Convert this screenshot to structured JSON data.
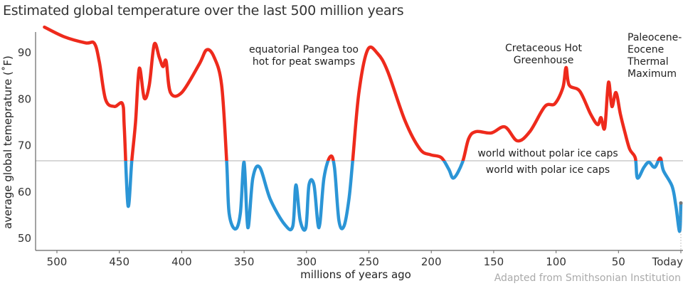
{
  "chart_data": {
    "type": "line",
    "title": "Estimated global temperature over the last 500 million years",
    "xlabel": "millions of years ago",
    "ylabel": "average global temeprature (˚F)",
    "xlim": [
      510,
      0
    ],
    "ylim": [
      48,
      96
    ],
    "x_ticks": [
      {
        "value": 500,
        "label": "500"
      },
      {
        "value": 450,
        "label": "450"
      },
      {
        "value": 400,
        "label": "400"
      },
      {
        "value": 350,
        "label": "350"
      },
      {
        "value": 300,
        "label": "300"
      },
      {
        "value": 250,
        "label": "250"
      },
      {
        "value": 200,
        "label": "200"
      },
      {
        "value": 150,
        "label": "150"
      },
      {
        "value": 100,
        "label": "100"
      },
      {
        "value": 50,
        "label": "50"
      },
      {
        "value": 0,
        "label": "Today"
      }
    ],
    "y_ticks": [
      {
        "value": 90,
        "label": "90"
      },
      {
        "value": 80,
        "label": "80"
      },
      {
        "value": 70,
        "label": "70"
      },
      {
        "value": 60,
        "label": "60"
      },
      {
        "value": 50,
        "label": "50"
      }
    ],
    "threshold": {
      "value": 66.7,
      "label_above": "world without polar ice caps",
      "label_below": "world with polar ice caps"
    },
    "colors": {
      "warm": "#ee2a1c",
      "cold": "#2b95d6",
      "threshold": "#cccccc"
    },
    "series": [
      {
        "name": "temperature",
        "x": [
          510,
          494,
          477,
          470,
          466,
          461,
          454,
          447.5,
          446,
          443,
          440,
          437,
          434,
          430,
          426,
          422,
          418,
          415,
          412.5,
          409,
          400,
          386,
          380,
          374,
          368,
          364,
          362,
          357,
          353,
          350,
          347,
          343,
          337.5,
          329,
          317.5,
          311,
          308.5,
          305,
          300.5,
          298,
          294,
          290,
          286,
          281,
          277.6,
          274,
          270,
          266,
          263,
          258,
          251,
          243,
          235,
          221,
          209,
          200.5,
          192,
          186,
          182,
          175,
          170,
          164,
          152,
          141,
          131,
          121,
          109,
          101,
          94.5,
          92,
          89.5,
          81,
          72.4,
          66.7,
          64,
          61,
          58,
          55.3,
          52,
          48.5,
          45,
          41,
          36.5,
          34.8,
          29.6,
          25.6,
          21,
          16.5,
          14,
          7,
          4,
          1,
          0
        ],
        "y": [
          95.5,
          93.4,
          92.1,
          92,
          88,
          79.9,
          78.4,
          79,
          73.8,
          57,
          66.7,
          75,
          86.6,
          80.2,
          83,
          91.8,
          89,
          87,
          88.2,
          81.4,
          81.4,
          87.5,
          90.6,
          89,
          83,
          66.7,
          55.4,
          52,
          55.4,
          66.4,
          52.3,
          63,
          65.3,
          58.4,
          53,
          52.6,
          61.5,
          53.8,
          52.3,
          61.5,
          61.5,
          52.3,
          63,
          67.6,
          65.3,
          53.8,
          52.6,
          58.4,
          66.7,
          81.4,
          90.6,
          89.8,
          86,
          75.3,
          69.2,
          68,
          67.4,
          64.9,
          63,
          66.4,
          71.5,
          73,
          72.7,
          74,
          71,
          73,
          78.4,
          79,
          82.5,
          86.8,
          83,
          81.7,
          76.8,
          74.5,
          76,
          73.8,
          83.6,
          78.4,
          81.4,
          76.8,
          73,
          69.2,
          67.3,
          63,
          65.3,
          66.4,
          65.3,
          67.3,
          64.6,
          61.2,
          57,
          51.5,
          57.6
        ]
      }
    ],
    "annotations": [
      {
        "text": [
          "equatorial Pangea too",
          "hot for peat swamps"
        ],
        "x": 280
      },
      {
        "text": [
          "Cretaceous Hot",
          "Greenhouse"
        ],
        "x": 95
      },
      {
        "text": [
          "Paleocene-",
          "Eocene",
          "Thermal",
          "Maximum"
        ],
        "x": 56
      }
    ],
    "source": "Adapted from Smithsonian Institution",
    "grid": false
  }
}
